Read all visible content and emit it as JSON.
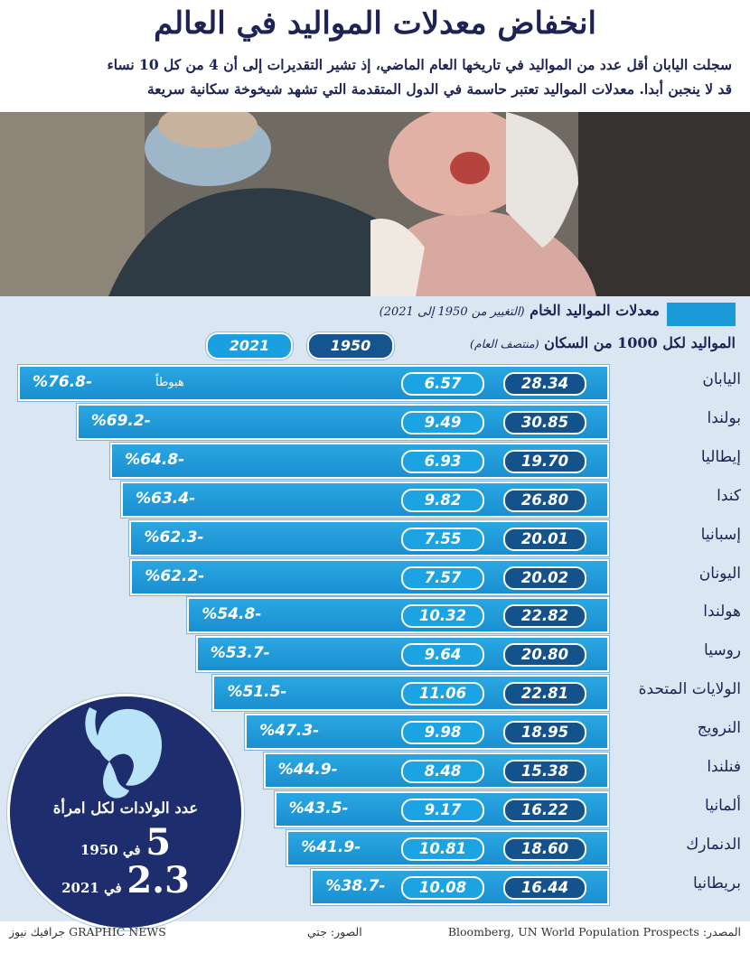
{
  "title": "انخفاض معدلات المواليد في العالم",
  "subtitle_line1": "سجلت اليابان أقل عدد من المواليد في تاريخها العام الماضي، إذ تشير التقديرات إلى أن 4 من كل 10 نساء",
  "subtitle_line2": "قد لا ينجبن أبدا. معدلات المواليد تعتبر حاسمة في الدول المتقدمة التي تشهد شيخوخة سكانية سريعة",
  "legend": {
    "label": "معدلات المواليد الخام",
    "note": "(التغيير من 1950 إلى 2021)"
  },
  "axis_title": "المواليد لكل 1000 من السكان",
  "axis_note": "(منتصف العام)",
  "key_1950": "1950",
  "key_2021": "2021",
  "drop_label": "هبوطاً",
  "chart_data": {
    "type": "bar",
    "series": [
      {
        "name": "1950",
        "values": [
          28.34,
          30.85,
          19.7,
          26.8,
          20.01,
          20.02,
          22.82,
          20.8,
          22.81,
          18.95,
          15.38,
          16.22,
          18.6,
          16.44
        ]
      },
      {
        "name": "2021",
        "values": [
          6.57,
          9.49,
          6.93,
          9.82,
          7.55,
          7.57,
          10.32,
          9.64,
          11.06,
          9.98,
          8.48,
          9.17,
          10.81,
          10.08
        ]
      }
    ],
    "categories": [
      "اليابان",
      "بولندا",
      "إيطاليا",
      "كندا",
      "إسبانيا",
      "اليونان",
      "هولندا",
      "روسيا",
      "الولايات المتحدة",
      "النرويج",
      "فنلندا",
      "ألمانيا",
      "الدنمارك",
      "بريطانيا"
    ],
    "change_pct": [
      -76.8,
      -69.2,
      -64.8,
      -63.4,
      -62.3,
      -62.2,
      -54.8,
      -53.7,
      -51.5,
      -47.3,
      -44.9,
      -43.5,
      -41.9,
      -38.7
    ],
    "rows": [
      {
        "country": "اليابان",
        "v1950": "28.34",
        "v2021": "6.57",
        "pct": "%76.8-"
      },
      {
        "country": "بولندا",
        "v1950": "30.85",
        "v2021": "9.49",
        "pct": "%69.2-"
      },
      {
        "country": "إيطاليا",
        "v1950": "19.70",
        "v2021": "6.93",
        "pct": "%64.8-"
      },
      {
        "country": "كندا",
        "v1950": "26.80",
        "v2021": "9.82",
        "pct": "%63.4-"
      },
      {
        "country": "إسبانيا",
        "v1950": "20.01",
        "v2021": "7.55",
        "pct": "%62.3-"
      },
      {
        "country": "اليونان",
        "v1950": "20.02",
        "v2021": "7.57",
        "pct": "%62.2-"
      },
      {
        "country": "هولندا",
        "v1950": "22.82",
        "v2021": "10.32",
        "pct": "%54.8-"
      },
      {
        "country": "روسيا",
        "v1950": "20.80",
        "v2021": "9.64",
        "pct": "%53.7-"
      },
      {
        "country": "الولايات المتحدة",
        "v1950": "22.81",
        "v2021": "11.06",
        "pct": "%51.5-"
      },
      {
        "country": "النرويج",
        "v1950": "18.95",
        "v2021": "9.98",
        "pct": "%47.3-"
      },
      {
        "country": "فنلندا",
        "v1950": "15.38",
        "v2021": "8.48",
        "pct": "%44.9-"
      },
      {
        "country": "ألمانيا",
        "v1950": "16.22",
        "v2021": "9.17",
        "pct": "%43.5-"
      },
      {
        "country": "الدنمارك",
        "v1950": "18.60",
        "v2021": "10.81",
        "pct": "%41.9-"
      },
      {
        "country": "بريطانيا",
        "v1950": "16.44",
        "v2021": "10.08",
        "pct": "%38.7-"
      }
    ]
  },
  "fertility": {
    "label": "عدد الولادات لكل امرأة",
    "v1950": "5",
    "y1950": "في 1950",
    "v2021": "2.3",
    "y2021": "في 2021"
  },
  "footer": {
    "source_label": "المصدر:",
    "source": "Bloomberg, UN World Population Prospects",
    "photos": "الصور: جتي",
    "brand": "GRAPHIC NEWS",
    "brand_ar": "جرافيك نيوز"
  },
  "colors": {
    "navy": "#1d2354",
    "bar": "#1a9ad6",
    "pill_1950": "#14528c",
    "pill_2021": "#1ba3e3",
    "panel": "#dbe6f3",
    "circle": "#1d2d6e"
  }
}
